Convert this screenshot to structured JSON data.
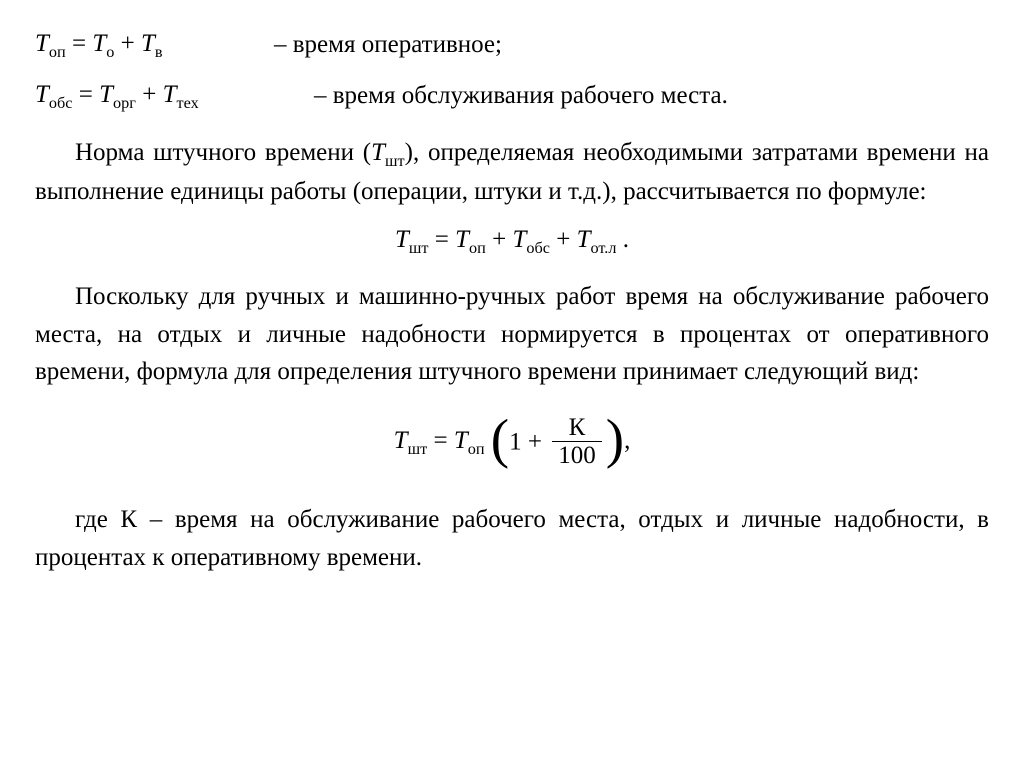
{
  "text_color": "#000000",
  "background_color": "#ffffff",
  "font_family": "Times New Roman",
  "base_fontsize_pt": 19,
  "definitions": [
    {
      "lhs_var": "T",
      "lhs_sub": "оп",
      "rhs": [
        {
          "var": "T",
          "sub": "о"
        },
        {
          "var": "T",
          "sub": "в"
        }
      ],
      "desc": "– время оперативное;"
    },
    {
      "lhs_var": "T",
      "lhs_sub": "обс",
      "rhs": [
        {
          "var": "T",
          "sub": "орг"
        },
        {
          "var": "T",
          "sub": "тех"
        }
      ],
      "desc": "– время обслуживания рабочего места."
    }
  ],
  "para1_before": "Норма штучного времени (",
  "para1_var": "T",
  "para1_sub": "шт",
  "para1_after": "), определяемая необходимыми затратами времени на выполнение единицы работы (операции, штуки и т.д.), рассчитывается по формуле:",
  "formula_tsht": {
    "lhs_var": "T",
    "lhs_sub": "шт",
    "terms": [
      {
        "var": "T",
        "sub": "оп"
      },
      {
        "var": "T",
        "sub": "обс"
      },
      {
        "var": "T",
        "sub": "от.л"
      }
    ],
    "trailing": "."
  },
  "para2": "Поскольку для ручных и машинно-ручных работ время на обслуживание рабочего места, на отдых и личные надобности нормируется в процентах от оперативного времени, формула для определения штучного времени принимает следующий вид:",
  "formula_k": {
    "lhs_var": "T",
    "lhs_sub": "шт",
    "rhs_var": "T",
    "rhs_sub": "оп",
    "inner_const": "1",
    "frac_num": "К",
    "frac_den": "100",
    "trailing": ","
  },
  "para3": "где К – время на обслуживание рабочего места, отдых и личные надобности, в процентах к оперативному времени."
}
